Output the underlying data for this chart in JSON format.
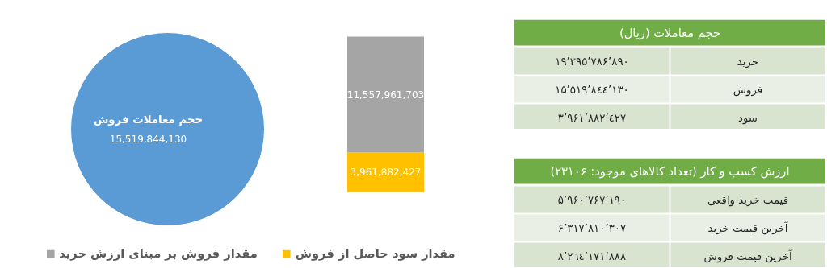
{
  "chart_data": [
    {
      "type": "pie",
      "categories": [
        "حجم معاملات فروش"
      ],
      "values": [
        15519844130
      ],
      "colors": [
        "#5b9bd5"
      ],
      "data_labels": true,
      "value_labels": [
        "15,519,844,130"
      ]
    },
    {
      "type": "bar",
      "stacked": true,
      "categories": [
        null
      ],
      "legend": "bottom",
      "series": [
        {
          "name": "مقدار سود حاصل از فروش",
          "color": "#ffc000",
          "values": [
            3961882427
          ],
          "value_labels": [
            "3,961,882,427"
          ]
        },
        {
          "name": "مقدار فروش بر مبنای ارزش خرید",
          "color": "#a5a5a5",
          "values": [
            11557961703
          ],
          "value_labels": [
            "11,557,961,703"
          ]
        }
      ]
    },
    {
      "type": "other",
      "title": "حجم معاملات (ریال)",
      "categories": [
        "خرید",
        "فروش",
        "سود"
      ],
      "value_labels": [
        "۱۹٬۳۹۵٬۷۸۶٬۸۹۰",
        "۱۵٬۵۱۹٬۸٤٤٬۱۳۰",
        "۳٬۹۶۱٬۸۸۲٬٤۲۷"
      ]
    },
    {
      "type": "other",
      "title": "ارزش کسب و کار (تعداد کالاهای موجود: ۲۳۱۰۶)",
      "categories": [
        "قیمت خرید واقعی",
        "آخرین قیمت خرید",
        "آخرین قیمت فروش"
      ],
      "value_labels": [
        "۵٬۹۶۰٬۷۶۷٬۱۹۰",
        "۶٬۳۱۷٬۸۱۰٬۳۰۷",
        "۸٬۲٦٤٬۱۷۱٬۸۸۸"
      ]
    }
  ]
}
